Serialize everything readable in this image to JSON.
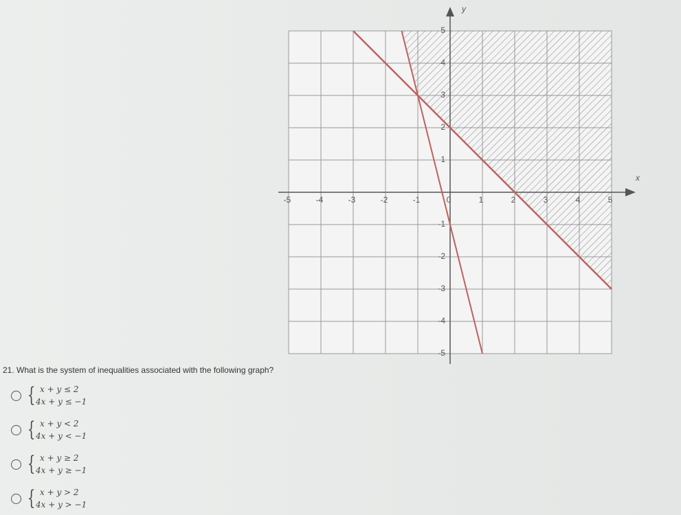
{
  "question": "21. What is the system of inequalities associated with the following graph?",
  "options": [
    [
      "x + y ≤ 2",
      "4x + y ≤ −1"
    ],
    [
      "x + y < 2",
      "4x + y < −1"
    ],
    [
      "x + y ≥ 2",
      "4x + y ≥ −1"
    ],
    [
      "x + y > 2",
      "4x + y > −1"
    ]
  ],
  "graph": {
    "x_label": "x",
    "y_label": "y",
    "xticks": [
      -5,
      -4,
      -3,
      -2,
      -1,
      0,
      1,
      2,
      3,
      4,
      5
    ],
    "yticks": [
      5,
      4,
      3,
      2,
      1,
      -1,
      -2,
      -3,
      -4,
      -5
    ]
  }
}
